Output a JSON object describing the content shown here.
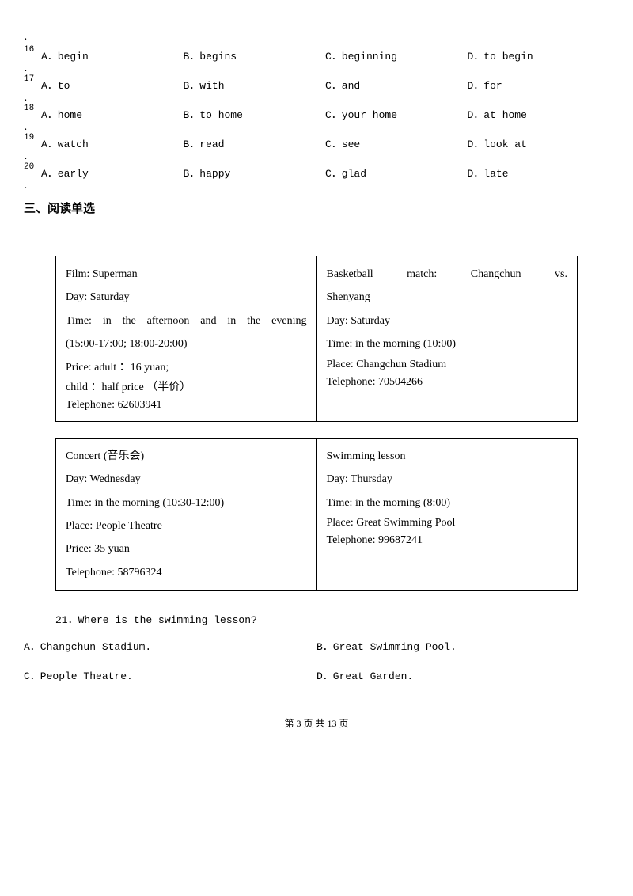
{
  "mcq": [
    {
      "num": "16",
      "a": "A．begin",
      "b": "B．begins",
      "c": "C．beginning",
      "d": "D．to begin"
    },
    {
      "num": "17",
      "a": "A．to",
      "b": "B．with",
      "c": "C．and",
      "d": "D．for"
    },
    {
      "num": "18",
      "a": "A．home",
      "b": "B．to home",
      "c": "C．your home",
      "d": "D．at home"
    },
    {
      "num": "19",
      "a": "A．watch",
      "b": "B．read",
      "c": "C．see",
      "d": "D．look at"
    },
    {
      "num": "20",
      "a": "A．early",
      "b": "B．happy",
      "c": "C．glad",
      "d": "D．late"
    }
  ],
  "section3_heading": "三、阅读单选",
  "box1": {
    "left": {
      "l1": "Film: Superman",
      "l2": "Day: Saturday",
      "l3": "Time:  in  the  afternoon  and  in  the  evening",
      "l4": "(15:00-17:00; 18:00-20:00)",
      "l5": "Price: adult ：16 yuan;",
      "l6": "child ：half price （半价）",
      "l7": "Telephone: 62603941"
    },
    "right": {
      "l1": "Basketball    match:    Changchun    vs.",
      "l2": "Shenyang",
      "l3": "Day: Saturday",
      "l4": "Time: in the morning (10:00)",
      "l5": "Place: Changchun Stadium",
      "l6": "Telephone: 70504266"
    }
  },
  "box2": {
    "left": {
      "l1": "Concert (音乐会)",
      "l2": "Day: Wednesday",
      "l3": "Time: in the morning (10:30-12:00)",
      "l4": "Place: People Theatre",
      "l5": "Price: 35 yuan",
      "l6": "Telephone: 58796324"
    },
    "right": {
      "l1": "Swimming lesson",
      "l2": "Day: Thursday",
      "l3": "Time: in the morning (8:00)",
      "l4": "Place: Great Swimming Pool",
      "l5": "Telephone: 99687241"
    }
  },
  "q21": {
    "stem": "21．Where is the swimming lesson?",
    "a": "A．Changchun Stadium.",
    "b": "B．Great Swimming Pool.",
    "c": "C．People Theatre.",
    "d": "D．Great Garden."
  },
  "footer": "第 3 页 共 13 页",
  "dot": "．"
}
